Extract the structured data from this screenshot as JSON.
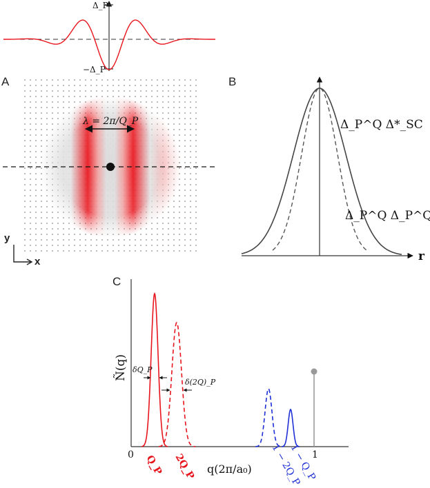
{
  "top_panel": {
    "label_pos": "Δ_P",
    "label_neg": "−Δ_P"
  },
  "panel_a": {
    "letter": "A",
    "wavelength_label": "λ = 2π/Q_P",
    "axis_y": "y",
    "axis_x": "x"
  },
  "panel_b": {
    "letter": "B",
    "curve_solid_label": "Δ_P^Q Δ*_SC",
    "curve_dashed_label": "Δ_P^Q Δ_P^Q*",
    "x_axis_label": "r"
  },
  "panel_c": {
    "letter": "C",
    "y_axis_label": "Ñ(q)",
    "x_axis_label": "q(2π/a₀)",
    "tick_zero": "0",
    "tick_one": "1",
    "delta_qp_label": "δQ_P",
    "delta_2qp_label": "δ(2Q)_P",
    "peak_labels": [
      "Q_P",
      "2Q_P",
      "1 − 2Q_P",
      "1 − Q_P"
    ]
  },
  "colors": {
    "red": "#e8141c",
    "blue": "#1d2fd6",
    "gray": "#999999"
  }
}
